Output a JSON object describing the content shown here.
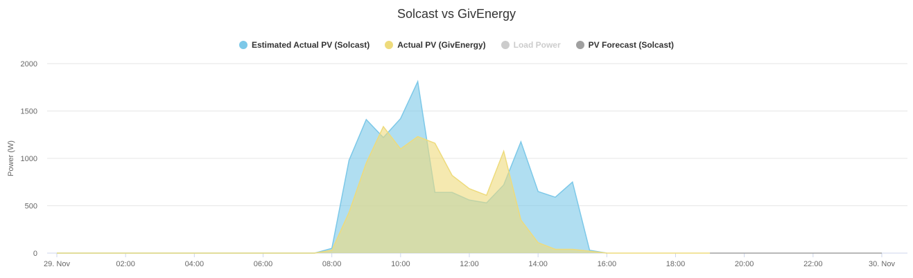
{
  "chart_data": {
    "type": "area",
    "title": "Solcast vs GivEnergy",
    "ylabel": "Power (W)",
    "xlabel": "",
    "ylim": [
      0,
      2000
    ],
    "y_ticks": [
      0,
      500,
      1000,
      1500,
      2000
    ],
    "x_range_hours": [
      0,
      24
    ],
    "x_ticks": [
      {
        "hour": 0,
        "label": "29. Nov"
      },
      {
        "hour": 2,
        "label": "02:00"
      },
      {
        "hour": 4,
        "label": "04:00"
      },
      {
        "hour": 6,
        "label": "06:00"
      },
      {
        "hour": 8,
        "label": "08:00"
      },
      {
        "hour": 10,
        "label": "10:00"
      },
      {
        "hour": 12,
        "label": "12:00"
      },
      {
        "hour": 14,
        "label": "14:00"
      },
      {
        "hour": 16,
        "label": "16:00"
      },
      {
        "hour": 18,
        "label": "18:00"
      },
      {
        "hour": 20,
        "label": "20:00"
      },
      {
        "hour": 22,
        "label": "22:00"
      },
      {
        "hour": 24,
        "label": "30. Nov"
      }
    ],
    "grid": true,
    "legend_position": "top-center",
    "series": [
      {
        "name": "Estimated Actual PV (Solcast)",
        "color": "#7cc8e8",
        "visible": true,
        "x": [
          0,
          7.5,
          8,
          8.5,
          9,
          9.5,
          10,
          10.5,
          11,
          11.5,
          12,
          12.5,
          13,
          13.5,
          14,
          14.5,
          15,
          15.5,
          16
        ],
        "y": [
          0,
          0,
          50,
          980,
          1410,
          1220,
          1420,
          1810,
          640,
          640,
          560,
          530,
          720,
          1175,
          650,
          590,
          750,
          30,
          0
        ]
      },
      {
        "name": "Actual PV (GivEnergy)",
        "color": "#eedb7c",
        "visible": true,
        "x": [
          0,
          7.5,
          8,
          8.5,
          9,
          9.5,
          10,
          10.5,
          11,
          11.5,
          12,
          12.5,
          13,
          13.5,
          14,
          14.5,
          15,
          15.5,
          16,
          19
        ],
        "y": [
          0,
          0,
          30,
          430,
          950,
          1335,
          1100,
          1230,
          1160,
          820,
          680,
          610,
          1075,
          350,
          110,
          40,
          40,
          20,
          0,
          0
        ]
      },
      {
        "name": "Load Power",
        "color": "#cccccc",
        "visible": false,
        "x": [],
        "y": []
      },
      {
        "name": "PV Forecast (Solcast)",
        "color": "#a0a0a0",
        "visible": true,
        "x": [
          19,
          24
        ],
        "y": [
          0,
          0
        ]
      }
    ]
  }
}
